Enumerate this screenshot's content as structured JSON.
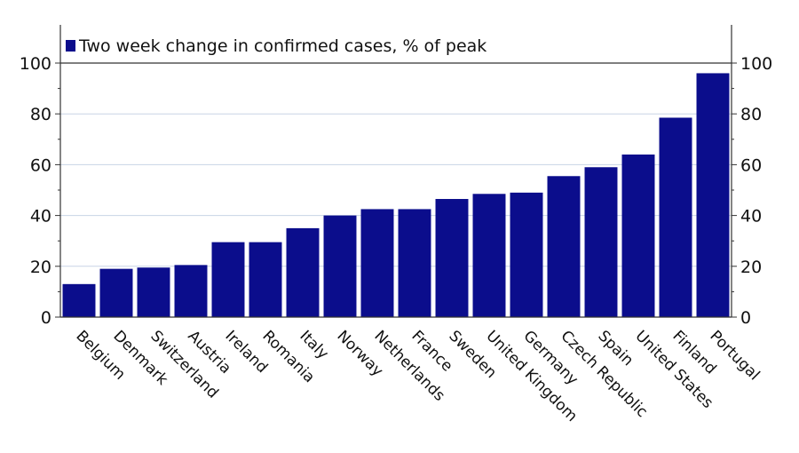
{
  "chart_data": {
    "type": "bar",
    "legend_label": "Two week change in confirmed cases, % of peak",
    "legend_position": "top-left",
    "categories": [
      "Belgium",
      "Denmark",
      "Switzerland",
      "Austria",
      "Ireland",
      "Romania",
      "Italy",
      "Norway",
      "Netherlands",
      "France",
      "Sweden",
      "United Kingdom",
      "Germany",
      "Czech Republic",
      "Spain",
      "United States",
      "Finland",
      "Portugal"
    ],
    "values": [
      13,
      19,
      19.5,
      20.5,
      29.5,
      29.5,
      35,
      40,
      42.5,
      42.5,
      46.5,
      48.5,
      49,
      55.5,
      59,
      64,
      78.5,
      96
    ],
    "ylim": [
      0,
      100
    ],
    "yticks": [
      0,
      20,
      40,
      60,
      80,
      100
    ],
    "grid": true,
    "dual_y_axis": true,
    "bar_color": "#0b0d8c"
  }
}
